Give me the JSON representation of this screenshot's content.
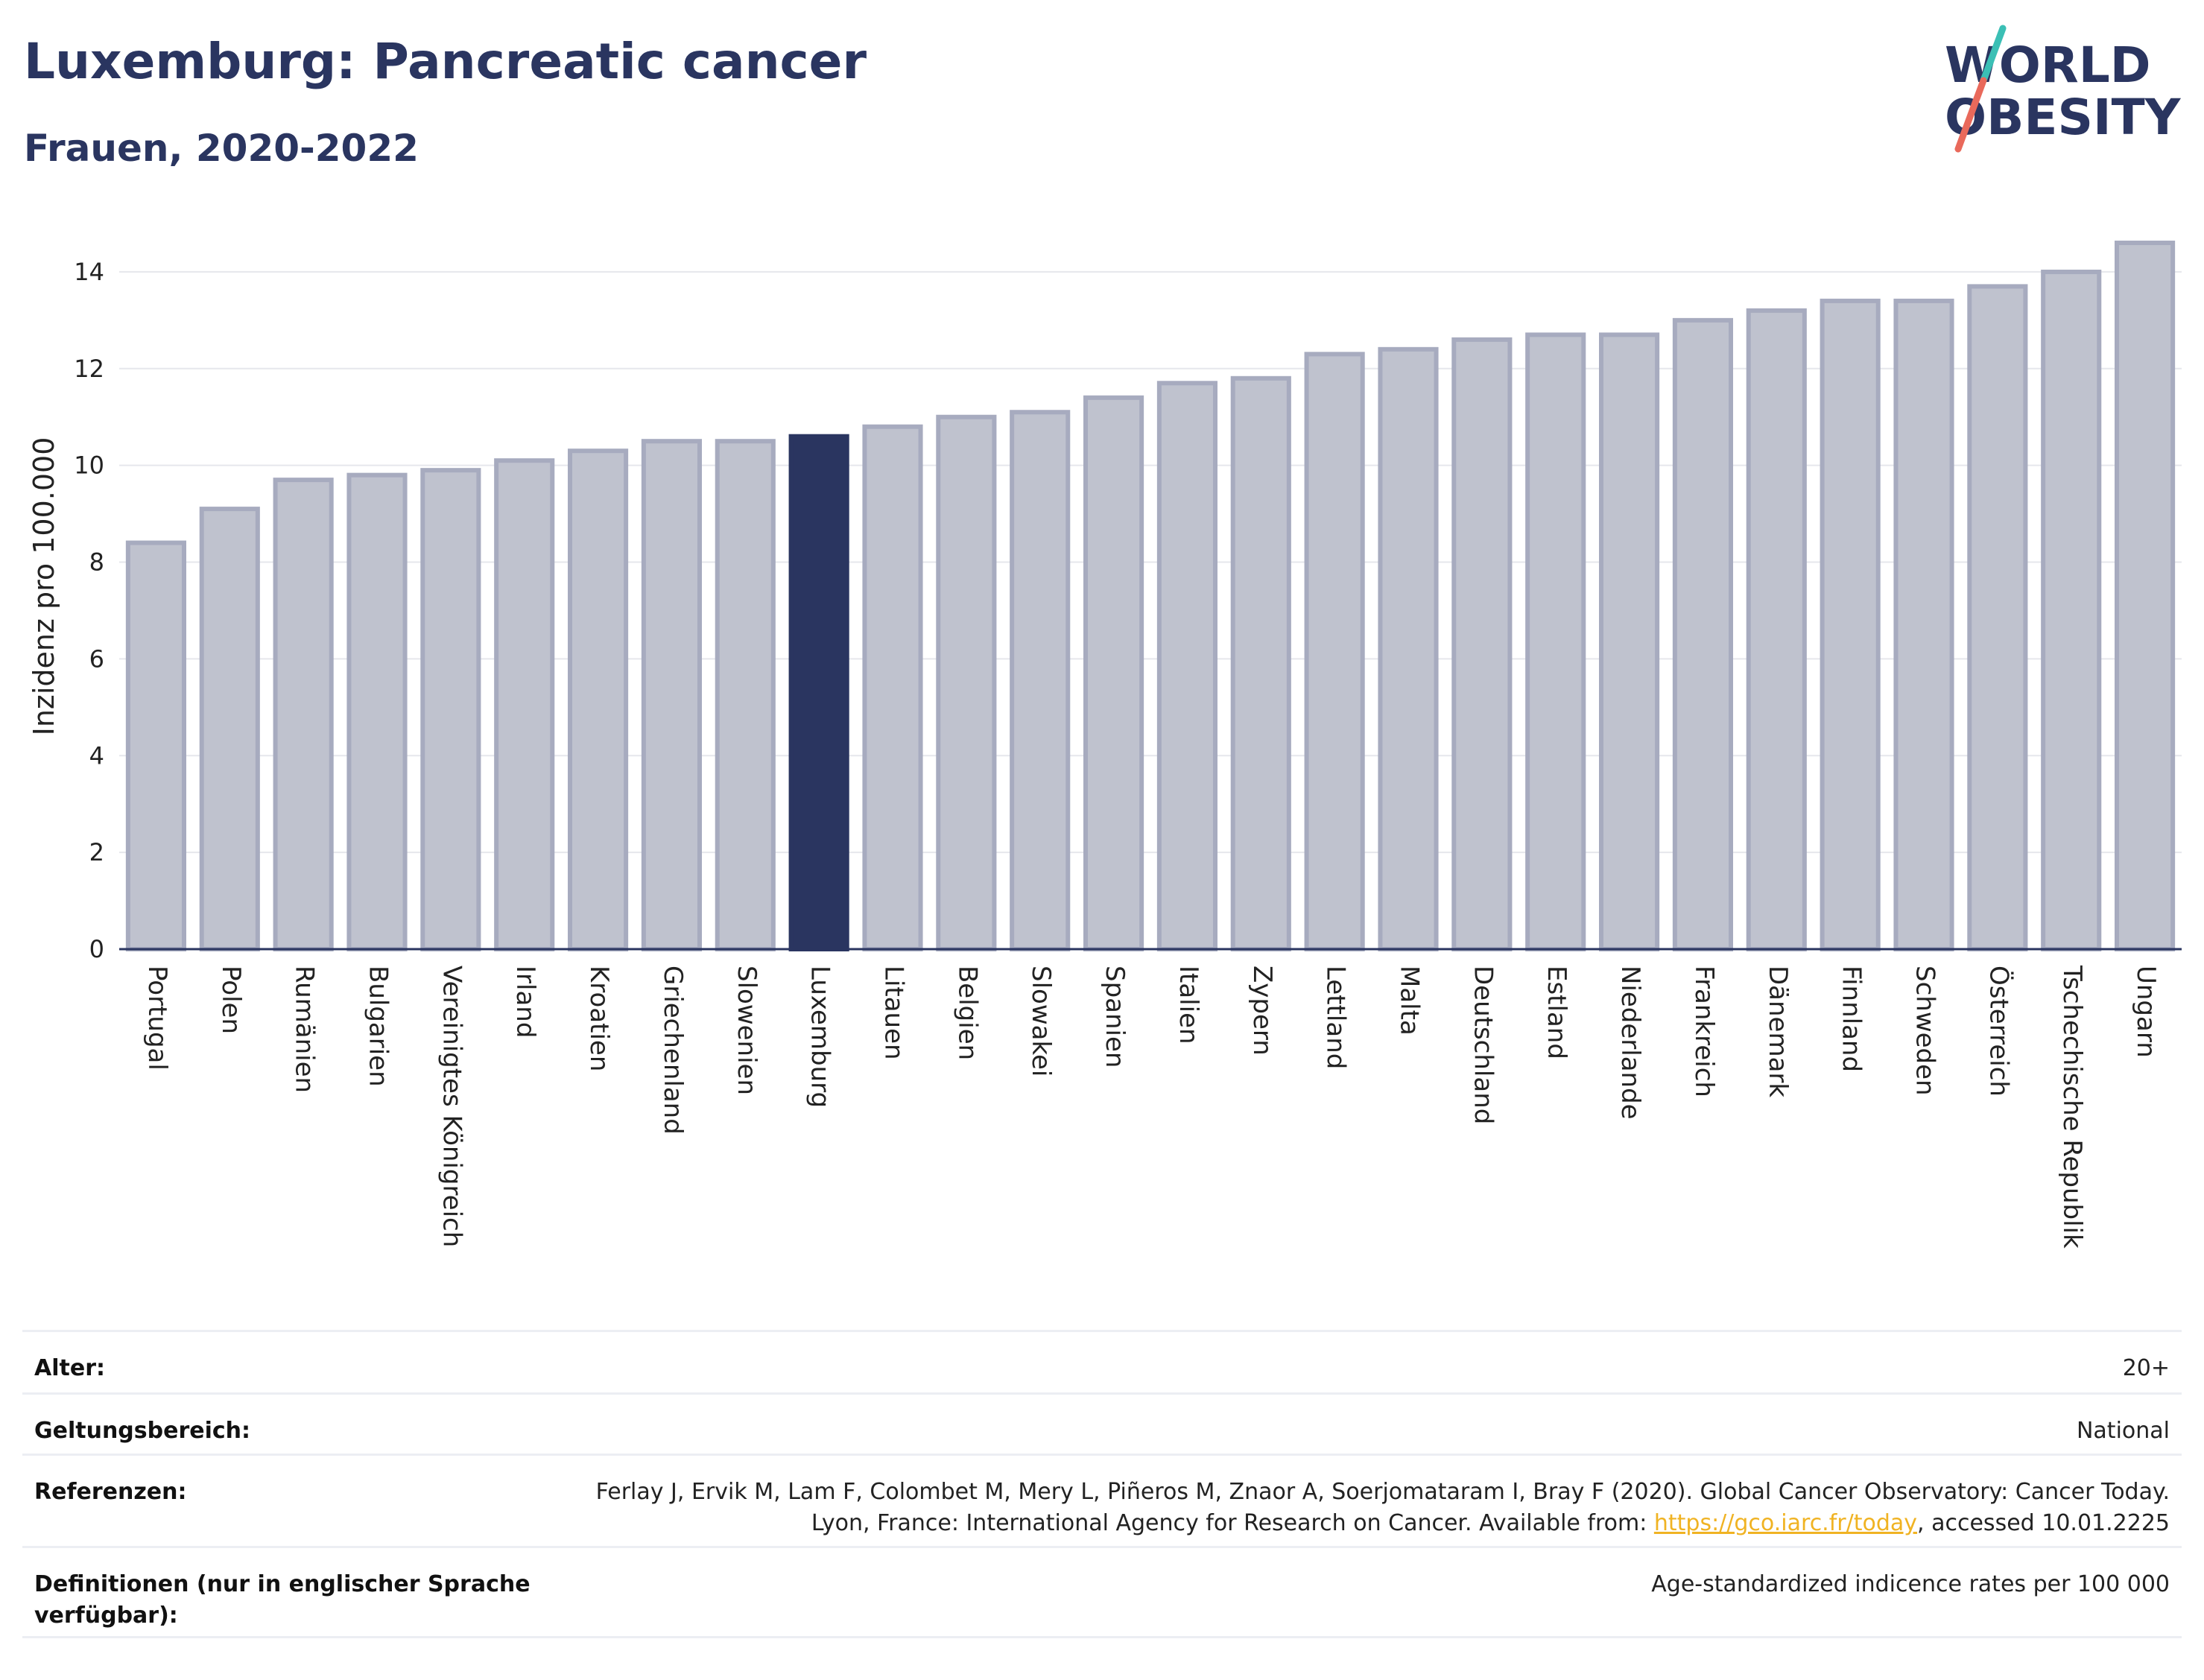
{
  "header": {
    "title": "Luxemburg: Pancreatic cancer",
    "subtitle": "Frauen, 2020-2022"
  },
  "logo": {
    "line1": "WORLD",
    "line2": "OBESITY",
    "text_color": "#2a3560",
    "slash_teal": "#3bbfb5",
    "slash_coral": "#e9695b"
  },
  "colors": {
    "bar_default": "#bfc2ce",
    "bar_default_stroke": "#a7abbf",
    "bar_highlight": "#2a3560",
    "axis": "#2a3560",
    "grid": "#e6e7ec"
  },
  "chart_data": {
    "type": "bar",
    "categories": [
      "Portugal",
      "Polen",
      "Rumänien",
      "Bulgarien",
      "Vereinigtes Königreich",
      "Irland",
      "Kroatien",
      "Griechenland",
      "Slowenien",
      "Luxemburg",
      "Litauen",
      "Belgien",
      "Slowakei",
      "Spanien",
      "Italien",
      "Zypern",
      "Lettland",
      "Malta",
      "Deutschland",
      "Estland",
      "Niederlande",
      "Frankreich",
      "Dänemark",
      "Finnland",
      "Schweden",
      "Österreich",
      "Tschechische Republik",
      "Ungarn"
    ],
    "values": [
      8.4,
      9.1,
      9.7,
      9.8,
      9.9,
      10.1,
      10.3,
      10.5,
      10.5,
      10.6,
      10.8,
      11.0,
      11.1,
      11.4,
      11.7,
      11.8,
      12.3,
      12.4,
      12.6,
      12.7,
      12.7,
      13.0,
      13.2,
      13.4,
      13.4,
      13.7,
      14.0,
      14.6
    ],
    "highlight": "Luxemburg",
    "ylabel": "Inzidenz pro 100.000",
    "ylim": [
      0,
      15
    ],
    "yticks": [
      0,
      2,
      4,
      6,
      8,
      10,
      12,
      14
    ],
    "grid": true
  },
  "meta": {
    "age_label": "Alter:",
    "age_value": "20+",
    "scope_label": "Geltungsbereich:",
    "scope_value": "National",
    "refs_label": "Referenzen:",
    "refs_text_1": "Ferlay J, Ervik M, Lam F, Colombet M, Mery L, Piñeros M, Znaor A, Soerjomataram I, Bray F (2020). Global Cancer Observatory: Cancer Today. Lyon, France: International Agency for Research on Cancer. Available from: ",
    "refs_link": "https://gco.iarc.fr/today",
    "refs_text_2": ", accessed 10.01.2225",
    "defs_label": "Definitionen (nur in englischer Sprache verfügbar):",
    "defs_value": "Age-standardized indicence rates per 100 000"
  }
}
